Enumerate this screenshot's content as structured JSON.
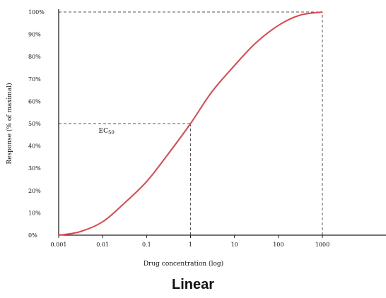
{
  "chart_data": {
    "type": "line",
    "xscale": "log",
    "xlabel": "Drug concentration (log)",
    "ylabel": "Response (% of maximal)",
    "x_ticks": [
      0.001,
      0.01,
      0.1,
      1,
      10,
      100,
      1000
    ],
    "x_tick_labels": [
      "0.001",
      "0.01",
      "0.1",
      "1",
      "10",
      "100",
      "1000"
    ],
    "y_ticks": [
      0,
      10,
      20,
      30,
      40,
      50,
      60,
      70,
      80,
      90,
      100
    ],
    "y_tick_labels": [
      "0%",
      "10%",
      "20%",
      "30%",
      "40%",
      "50%",
      "60%",
      "70%",
      "80%",
      "90%",
      "100%"
    ],
    "xlim": [
      0.001,
      1000
    ],
    "ylim": [
      0,
      100
    ],
    "series": [
      {
        "color": "#e0474c",
        "x": [
          0.001,
          0.003,
          0.01,
          0.03,
          0.1,
          0.3,
          1,
          3,
          10,
          30,
          100,
          300,
          1000
        ],
        "y": [
          0,
          1.5,
          6,
          14,
          24,
          36,
          50,
          64,
          76,
          86,
          94,
          98.5,
          100
        ]
      }
    ],
    "annotations": [
      {
        "text": "EC",
        "subscript": "50",
        "x": 1,
        "y": 50
      }
    ],
    "reference_lines": [
      {
        "from": [
          0.001,
          50
        ],
        "to": [
          1,
          50
        ]
      },
      {
        "from": [
          1,
          0
        ],
        "to": [
          1,
          50
        ]
      },
      {
        "from": [
          0.001,
          100
        ],
        "to": [
          1000,
          100
        ]
      },
      {
        "from": [
          1000,
          0
        ],
        "to": [
          1000,
          100
        ]
      }
    ]
  },
  "caption": "Linear"
}
